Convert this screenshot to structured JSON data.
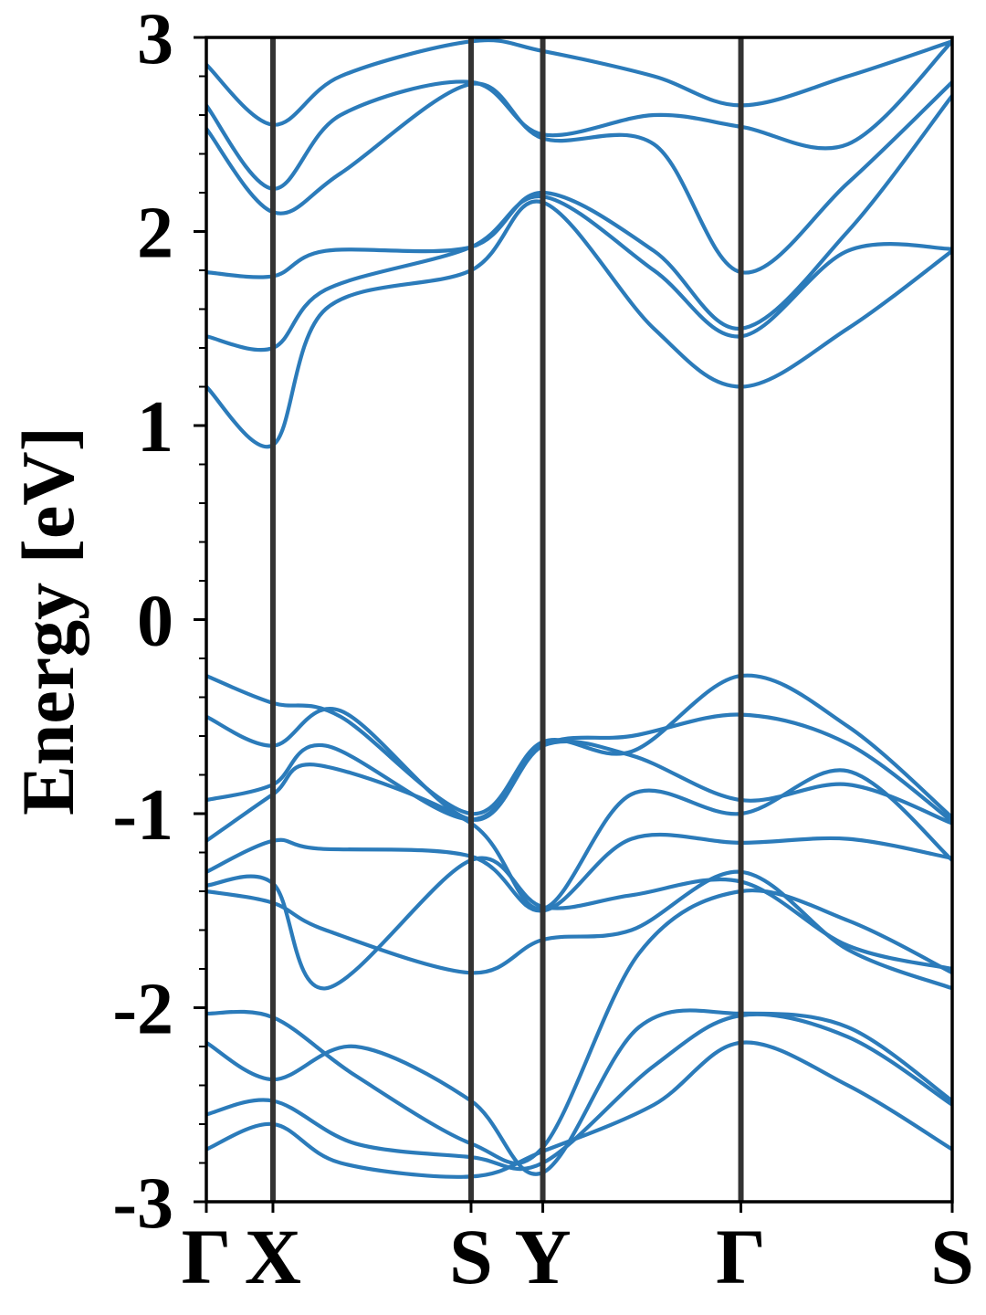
{
  "chart_data": {
    "type": "line",
    "title": "",
    "ylabel": "Energy [eV]",
    "xlabel": "",
    "ylim": [
      -3,
      3
    ],
    "yticks": [
      -3,
      -2,
      -1,
      0,
      1,
      2,
      3
    ],
    "ytick_labels": [
      "-3",
      "-2",
      "-1",
      "0",
      "1",
      "2",
      "3"
    ],
    "yminor_step": 0.2,
    "xlim": [
      0,
      1
    ],
    "high_symmetry_points": [
      {
        "label": "Γ",
        "x": 0.0
      },
      {
        "label": "X",
        "x": 0.0893
      },
      {
        "label": "S",
        "x": 0.3549
      },
      {
        "label": "Y",
        "x": 0.4511
      },
      {
        "label": "Γ",
        "x": 0.7167
      },
      {
        "label": "S",
        "x": 1.0
      }
    ],
    "grid": false,
    "colors": {
      "band": "#2b7bba",
      "kline": "#333333",
      "axis": "#000000"
    },
    "bands": [
      {
        "name": "",
        "x": [
          0,
          0.0893,
          0.18,
          0.3549,
          0.4511,
          0.6,
          0.7167,
          0.86,
          1.0
        ],
        "y": [
          -2.73,
          -2.6,
          -2.8,
          -2.87,
          -2.74,
          -2.5,
          -2.18,
          -2.4,
          -2.73
        ]
      },
      {
        "name": "",
        "x": [
          0,
          0.0893,
          0.2,
          0.3549,
          0.4511,
          0.6,
          0.7167,
          0.86,
          1.0
        ],
        "y": [
          -2.55,
          -2.48,
          -2.7,
          -2.77,
          -2.8,
          -2.3,
          -2.04,
          -2.15,
          -2.5
        ]
      },
      {
        "name": "",
        "x": [
          0,
          0.0893,
          0.2,
          0.3549,
          0.4511,
          0.58,
          0.7167,
          0.86,
          1.0
        ],
        "y": [
          -2.18,
          -2.37,
          -2.2,
          -2.48,
          -2.85,
          -2.1,
          -2.03,
          -2.1,
          -2.48
        ]
      },
      {
        "name": "",
        "x": [
          0,
          0.0893,
          0.2,
          0.3549,
          0.4511,
          0.58,
          0.7167,
          0.86,
          1.0
        ],
        "y": [
          -2.03,
          -2.05,
          -2.35,
          -2.7,
          -2.72,
          -1.72,
          -1.4,
          -1.55,
          -1.82
        ]
      },
      {
        "name": "",
        "x": [
          0,
          0.0893,
          0.16,
          0.3549,
          0.4511,
          0.57,
          0.7167,
          0.86,
          1.0
        ],
        "y": [
          -1.4,
          -1.46,
          -1.6,
          -1.82,
          -1.65,
          -1.6,
          -1.3,
          -1.7,
          -1.9
        ]
      },
      {
        "name": "",
        "x": [
          0,
          0.0893,
          0.16,
          0.3549,
          0.4511,
          0.57,
          0.7167,
          0.86,
          1.0
        ],
        "y": [
          -1.37,
          -1.36,
          -1.9,
          -1.24,
          -1.48,
          -1.42,
          -1.35,
          -1.68,
          -1.8
        ]
      },
      {
        "name": "",
        "x": [
          0,
          0.0893,
          0.15,
          0.3549,
          0.4511,
          0.57,
          0.7167,
          0.86,
          1.0
        ],
        "y": [
          -1.3,
          -1.14,
          -1.18,
          -1.22,
          -1.5,
          -1.13,
          -1.15,
          -1.13,
          -1.23
        ]
      },
      {
        "name": "",
        "x": [
          0,
          0.0893,
          0.15,
          0.3549,
          0.4511,
          0.57,
          0.7167,
          0.86,
          1.0
        ],
        "y": [
          -1.14,
          -0.9,
          -0.75,
          -1.05,
          -1.49,
          -0.9,
          -1.0,
          -0.78,
          -1.24
        ]
      },
      {
        "name": "",
        "x": [
          0,
          0.0893,
          0.16,
          0.3549,
          0.4511,
          0.57,
          0.7167,
          0.86,
          1.0
        ],
        "y": [
          -0.93,
          -0.85,
          -0.65,
          -1.03,
          -0.65,
          -0.7,
          -0.93,
          -0.85,
          -1.05
        ]
      },
      {
        "name": "",
        "x": [
          0,
          0.0893,
          0.18,
          0.3549,
          0.4511,
          0.57,
          0.7167,
          0.86,
          1.0
        ],
        "y": [
          -0.5,
          -0.65,
          -0.47,
          -1.03,
          -0.65,
          -0.6,
          -0.49,
          -0.64,
          -1.04
        ]
      },
      {
        "name": "",
        "x": [
          0,
          0.0893,
          0.18,
          0.3549,
          0.4511,
          0.57,
          0.7167,
          0.86,
          1.0
        ],
        "y": [
          -0.29,
          -0.43,
          -0.5,
          -1.0,
          -0.63,
          -0.68,
          -0.29,
          -0.55,
          -1.02
        ]
      },
      {
        "name": "",
        "x": [
          0,
          0.0893,
          0.16,
          0.3549,
          0.4511,
          0.6,
          0.7167,
          0.86,
          1.0
        ],
        "y": [
          1.2,
          0.9,
          1.6,
          1.8,
          2.15,
          1.5,
          1.2,
          1.5,
          1.9
        ]
      },
      {
        "name": "",
        "x": [
          0,
          0.0893,
          0.16,
          0.3549,
          0.4511,
          0.6,
          0.7167,
          0.86,
          1.0
        ],
        "y": [
          1.46,
          1.4,
          1.7,
          1.92,
          2.18,
          1.8,
          1.46,
          1.9,
          1.91
        ]
      },
      {
        "name": "",
        "x": [
          0,
          0.0893,
          0.16,
          0.3549,
          0.4511,
          0.6,
          0.7167,
          0.86,
          1.0
        ],
        "y": [
          1.79,
          1.77,
          1.9,
          1.92,
          2.2,
          1.9,
          1.5,
          2.0,
          2.7
        ]
      },
      {
        "name": "",
        "x": [
          0,
          0.0893,
          0.18,
          0.3549,
          0.4511,
          0.6,
          0.7167,
          0.86,
          1.0
        ],
        "y": [
          2.53,
          2.1,
          2.3,
          2.76,
          2.48,
          2.45,
          1.79,
          2.25,
          2.77
        ]
      },
      {
        "name": "",
        "x": [
          0,
          0.0893,
          0.18,
          0.3549,
          0.4511,
          0.6,
          0.7167,
          0.86,
          1.0
        ],
        "y": [
          2.65,
          2.22,
          2.6,
          2.77,
          2.5,
          2.6,
          2.54,
          2.45,
          2.98
        ]
      },
      {
        "name": "",
        "x": [
          0,
          0.0893,
          0.18,
          0.3549,
          0.4511,
          0.6,
          0.7167,
          0.86,
          1.0
        ],
        "y": [
          2.86,
          2.55,
          2.8,
          2.98,
          2.93,
          2.8,
          2.65,
          2.8,
          2.98
        ]
      }
    ]
  }
}
